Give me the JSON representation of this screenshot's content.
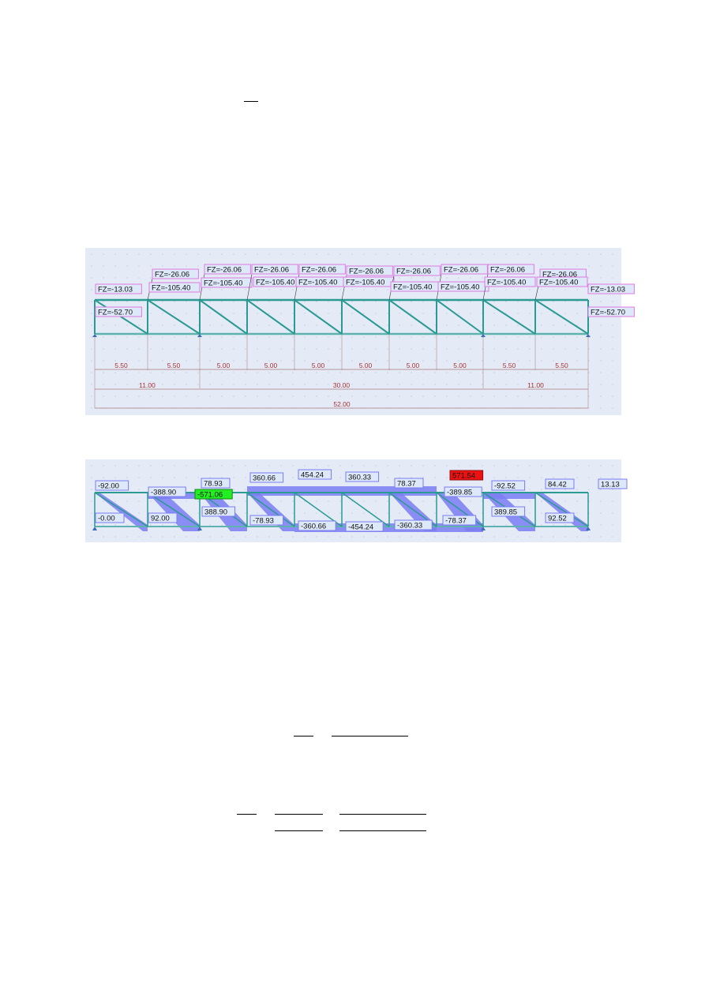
{
  "figure1": {
    "support_reaction_labels": {
      "top_row": [
        "FZ=-26.06",
        "FZ=-26.06",
        "FZ=-26.06",
        "FZ=-26.06",
        "FZ=-26.06",
        "FZ=-26.06",
        "FZ=-26.06",
        "FZ=-26.06",
        "FZ=-26.06"
      ],
      "second_row": [
        "FZ=-105.40",
        "FZ=-105.40",
        "FZ=-105.40",
        "FZ=-105.40",
        "FZ=-105.40",
        "FZ=-105.40",
        "FZ=-105.40",
        "FZ=-105.40",
        "FZ=-105.40"
      ],
      "left_end": [
        "FZ=-13.03",
        "FZ=-52.70"
      ],
      "right_end": [
        "FZ=-13.03",
        "FZ=-52.70"
      ]
    },
    "panel_dimensions": [
      "5.50",
      "5.50",
      "5.00",
      "5.00",
      "5.00",
      "5.00",
      "5.00",
      "5.00",
      "5.50",
      "5.50"
    ],
    "group_dimensions": [
      "11.00",
      "30.00",
      "11.00"
    ],
    "total_dimension": "52.00",
    "colors": {
      "member": "#2a9a92",
      "label_border": "#e07ae0",
      "dimension": "#a83232"
    }
  },
  "figure2": {
    "member_force_labels": [
      "-92.00",
      "-0.00",
      "-388.90",
      "92.00",
      "78.93",
      "388.90",
      "360.66",
      "-78.93",
      "454.24",
      "-360.66",
      "360.33",
      "-454.24",
      "78.37",
      "-360.33",
      "-78.37",
      "-389.85",
      "-92.52",
      "389.85",
      "84.42",
      "92.52",
      "13.13"
    ],
    "min_label": "-571.06",
    "max_label": "571.54",
    "colors": {
      "force_band": "#7a7cf2",
      "min": "#22ee22",
      "max": "#ee1111",
      "label_border": "#7a7cf2"
    }
  }
}
